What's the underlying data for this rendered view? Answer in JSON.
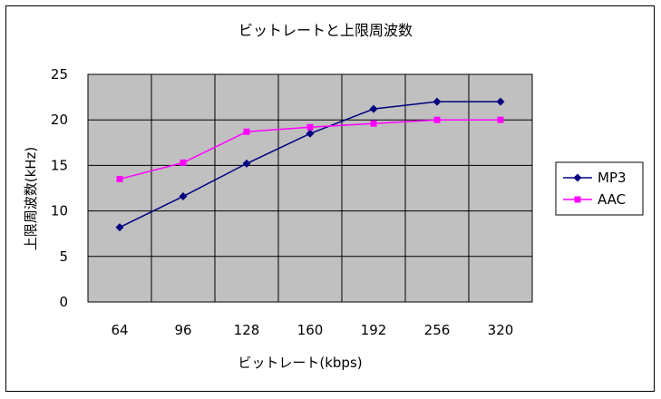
{
  "chart_data": {
    "type": "line",
    "title": "ビットレートと上限周波数",
    "xlabel": "ビットレート(kbps)",
    "ylabel": "上限周波数(kHz)",
    "categories": [
      "64",
      "96",
      "128",
      "160",
      "192",
      "256",
      "320"
    ],
    "ylim": [
      0,
      25
    ],
    "yticks": [
      0,
      5,
      10,
      15,
      20,
      25
    ],
    "grid": true,
    "plot_background": "#c0c0c0",
    "legend_position": "right",
    "series": [
      {
        "name": "MP3",
        "color": "#000080",
        "marker": "diamond",
        "values": [
          8.2,
          11.6,
          15.2,
          18.5,
          21.2,
          22.0,
          22.0
        ]
      },
      {
        "name": "AAC",
        "color": "#ff00ff",
        "marker": "square",
        "values": [
          13.5,
          15.3,
          18.7,
          19.2,
          19.6,
          20.0,
          20.0
        ]
      }
    ]
  }
}
